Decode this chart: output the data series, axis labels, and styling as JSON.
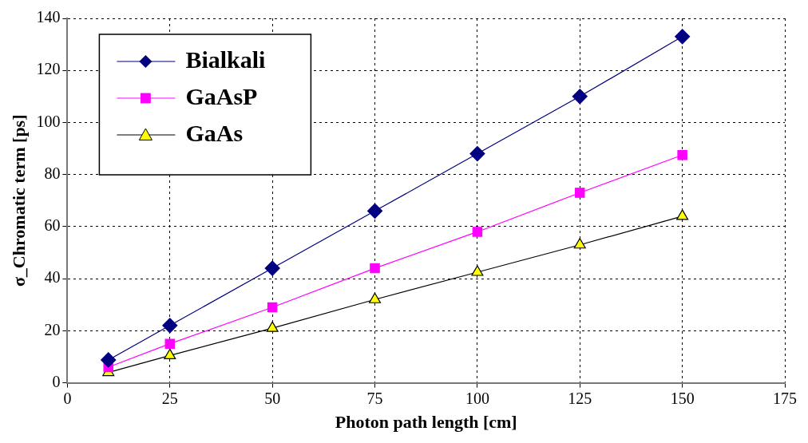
{
  "chart_data": {
    "type": "line",
    "xlabel": "Photon path length [cm]",
    "ylabel": "σ_Chromatic term [ps]",
    "x": [
      10,
      25,
      50,
      75,
      100,
      125,
      150
    ],
    "series": [
      {
        "name": "Bialkali",
        "color": "#000080",
        "marker": "diamond",
        "values": [
          8.8,
          22,
          44,
          66,
          88,
          110,
          133
        ]
      },
      {
        "name": "GaAsP",
        "color": "#ff00ff",
        "marker": "square",
        "values": [
          6,
          15,
          29,
          44,
          58,
          73,
          87.5
        ]
      },
      {
        "name": "GaAs",
        "color": "#ffff00",
        "marker": "triangle",
        "values": [
          4,
          10.5,
          21,
          32,
          42.5,
          53,
          64
        ]
      }
    ],
    "xlim": [
      0,
      175
    ],
    "xticks": [
      0,
      25,
      50,
      75,
      100,
      125,
      150,
      175
    ],
    "ylim": [
      0,
      140
    ],
    "yticks": [
      0,
      20,
      40,
      60,
      80,
      100,
      120,
      140
    ],
    "grid": true,
    "legend": "top left",
    "line_style": "solid"
  }
}
